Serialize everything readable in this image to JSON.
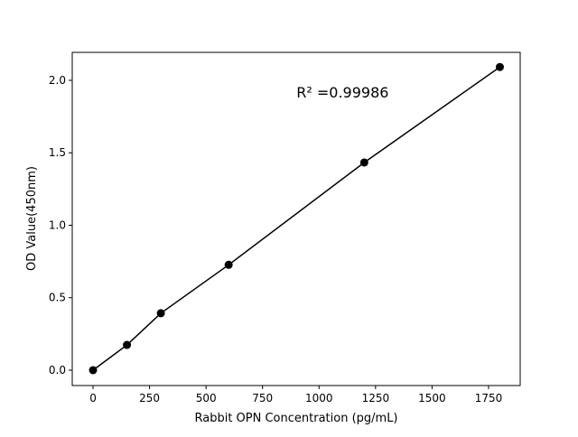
{
  "chart_data": {
    "type": "line",
    "title": "",
    "xlabel": "Rabbit OPN Concentration (pg/mL)",
    "ylabel": "OD Value(450nm)",
    "annotation": "R² =0.99986",
    "x": [
      0,
      150,
      300,
      600,
      1200,
      1800
    ],
    "series": [
      {
        "values": [
          0.0,
          0.174,
          0.393,
          0.727,
          1.433,
          2.092
        ],
        "color": "#000000",
        "marker": "circle"
      }
    ],
    "xlim": [
      -92,
      1890
    ],
    "ylim": [
      -0.106,
      2.193
    ],
    "xticks": [
      0,
      250,
      500,
      750,
      1000,
      1250,
      1500,
      1750
    ],
    "xtick_labels": [
      "0",
      "250",
      "500",
      "750",
      "1000",
      "1250",
      "1500",
      "1750"
    ],
    "yticks": [
      0,
      0.5,
      1,
      1.5,
      2
    ],
    "ytick_labels": [
      "0.0",
      "0.5",
      "1.0",
      "1.5",
      "2.0"
    ],
    "grid": false,
    "annotation_pos_data": [
      900,
      1.88
    ]
  }
}
